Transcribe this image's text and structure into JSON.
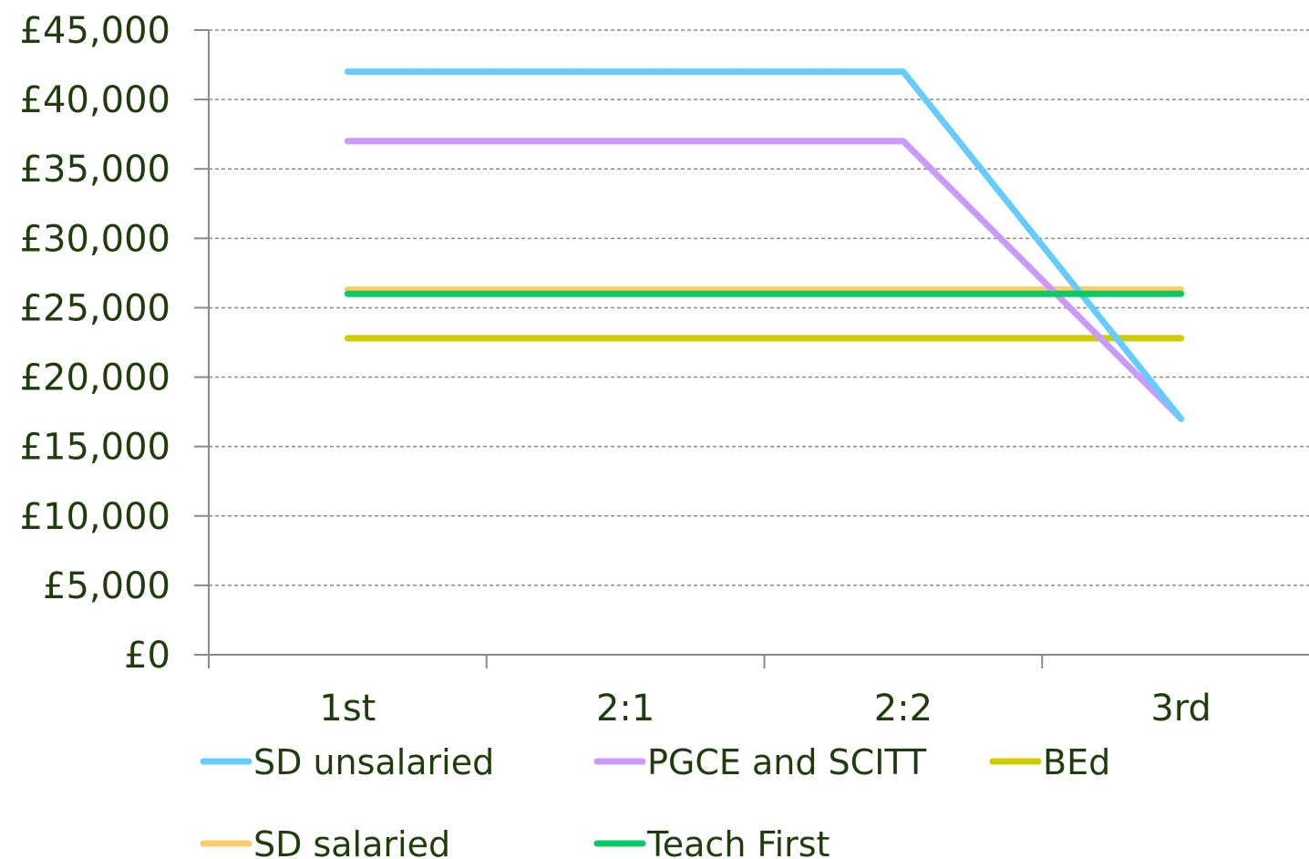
{
  "chart_data": {
    "type": "line",
    "categories": [
      "1st",
      "2:1",
      "2:2",
      "3rd"
    ],
    "y_ticks": [
      "£0",
      "£5,000",
      "£10,000",
      "£15,000",
      "£20,000",
      "£25,000",
      "£30,000",
      "£35,000",
      "£40,000",
      "£45,000"
    ],
    "ylim": [
      0,
      45000
    ],
    "grid": true,
    "grid_style": "dashed",
    "legend_position": "bottom",
    "series": [
      {
        "name": "SD unsalaried",
        "color": "#66ccff",
        "values": [
          42000,
          42000,
          42000,
          17000
        ]
      },
      {
        "name": "PGCE and SCITT",
        "color": "#cc99ff",
        "values": [
          37000,
          37000,
          37000,
          17000
        ]
      },
      {
        "name": "BEd",
        "color": "#cccc00",
        "values": [
          22800,
          22800,
          22800,
          22800
        ]
      },
      {
        "name": "SD salaried",
        "color": "#ffcc66",
        "values": [
          26300,
          26300,
          26300,
          26300
        ]
      },
      {
        "name": "Teach First",
        "color": "#00cc66",
        "values": [
          26000,
          26000,
          26000,
          26000
        ]
      }
    ]
  }
}
